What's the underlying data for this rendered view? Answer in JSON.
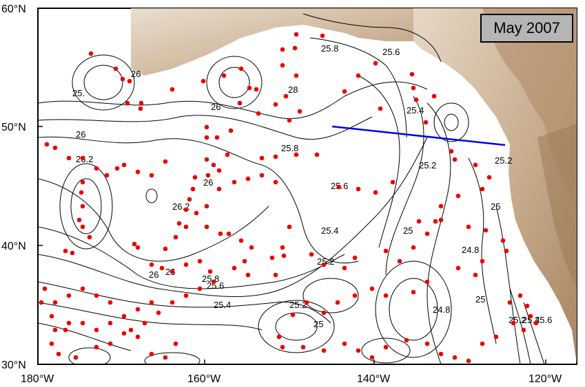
{
  "map": {
    "badge": "May 2007",
    "lat_labels": [
      "60°N",
      "50°N",
      "40°N",
      "30°N"
    ],
    "lon_labels": [
      "180°W",
      "160°W",
      "140°W",
      "120°W"
    ],
    "contour_labels": [
      "25.8",
      "25.6",
      "26",
      "25.",
      "26",
      "28",
      "26",
      "25.4",
      "26",
      "26.2",
      "25.8",
      "25.2",
      "25.2",
      "26",
      "26.2",
      "25.6",
      "25",
      "25.4",
      "25",
      "24.8",
      "26",
      "25.8",
      "25.6",
      "25.4",
      "25.2",
      "25",
      "25.2",
      "24.8",
      "25",
      "25.2",
      "25.4",
      "25.6"
    ],
    "colors": {
      "land_light": "#d9c8b4",
      "land_dark": "#a88563",
      "contours": "#000000",
      "floats": "#ee0000",
      "section_line": "#0000ee",
      "badge_bg": "#b5b5b5"
    }
  }
}
